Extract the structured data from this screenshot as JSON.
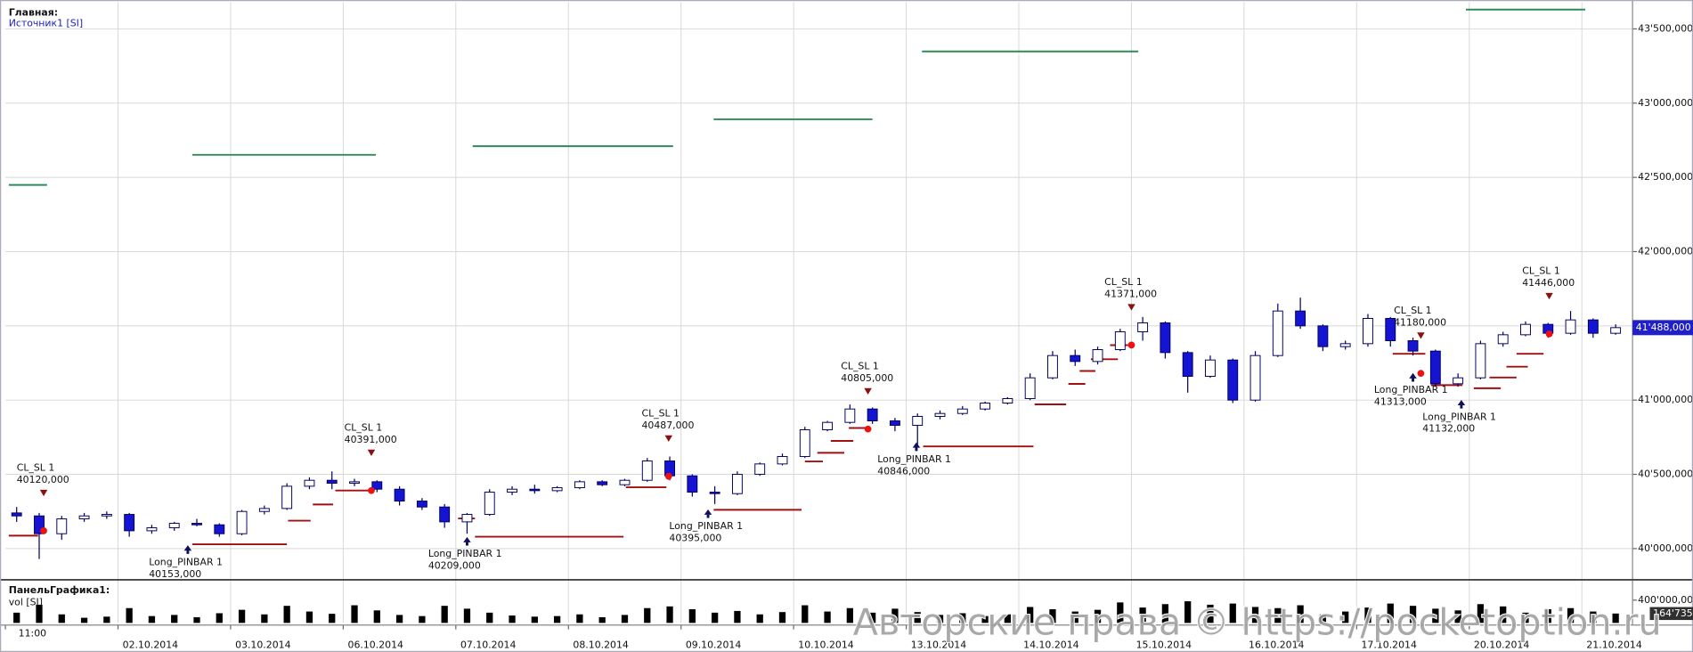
{
  "chart_data": {
    "type": "candlestick",
    "title": "Главная:",
    "subtitle": "Источник1 [SI]",
    "xlim": [
      0,
      14.45
    ],
    "xticks": [
      {
        "value": 0,
        "label": "11:00"
      },
      {
        "value": 1,
        "label": "02.10.2014"
      },
      {
        "value": 2,
        "label": "03.10.2014"
      },
      {
        "value": 3,
        "label": "06.10.2014"
      },
      {
        "value": 4,
        "label": "07.10.2014"
      },
      {
        "value": 5,
        "label": "08.10.2014"
      },
      {
        "value": 6,
        "label": "09.10.2014"
      },
      {
        "value": 7,
        "label": "10.10.2014"
      },
      {
        "value": 8,
        "label": "13.10.2014"
      },
      {
        "value": 9,
        "label": "14.10.2014"
      },
      {
        "value": 10,
        "label": "15.10.2014"
      },
      {
        "value": 11,
        "label": "16.10.2014"
      },
      {
        "value": 12,
        "label": "17.10.2014"
      },
      {
        "value": 13,
        "label": "20.10.2014"
      },
      {
        "value": 14,
        "label": "21.10.2014"
      }
    ],
    "ylim": [
      39797,
      43680
    ],
    "yticks": [
      {
        "value": 40000,
        "label": "40'000,000"
      },
      {
        "value": 40500,
        "label": "40'500,000"
      },
      {
        "value": 41000,
        "label": "41'000,000"
      },
      {
        "value": 41500,
        "label": "41'500,000"
      },
      {
        "value": 42000,
        "label": "42'000,000"
      },
      {
        "value": 42500,
        "label": "42'500,000"
      },
      {
        "value": 43000,
        "label": "43'000,000"
      },
      {
        "value": 43500,
        "label": "43'500,000"
      }
    ],
    "grid": true,
    "up_color": "#ffffff",
    "down_color": "#1414d2",
    "x": [
      0.1,
      0.3,
      0.5,
      0.7,
      0.9,
      1.1,
      1.3,
      1.5,
      1.7,
      1.9,
      2.1,
      2.3,
      2.5,
      2.7,
      2.9,
      3.1,
      3.3,
      3.5,
      3.7,
      3.9,
      4.1,
      4.3,
      4.5,
      4.7,
      4.9,
      5.1,
      5.3,
      5.5,
      5.7,
      5.9,
      6.1,
      6.3,
      6.5,
      6.7,
      6.9,
      7.1,
      7.3,
      7.5,
      7.7,
      7.9,
      8.1,
      8.3,
      8.5,
      8.7,
      8.9,
      9.1,
      9.3,
      9.5,
      9.7,
      9.9,
      10.1,
      10.3,
      10.5,
      10.7,
      10.9,
      11.1,
      11.3,
      11.5,
      11.7,
      11.9,
      12.1,
      12.3,
      12.5,
      12.7,
      12.9,
      13.1,
      13.3,
      13.5,
      13.7,
      13.9,
      14.1,
      14.3
    ],
    "open": [
      40240,
      40220,
      40100,
      40200,
      40220,
      40230,
      40120,
      40140,
      40170,
      40160,
      40100,
      40250,
      40270,
      40420,
      40460,
      40440,
      40450,
      40400,
      40320,
      40280,
      40180,
      40230,
      40380,
      40400,
      40390,
      40410,
      40450,
      40430,
      40460,
      40590,
      40490,
      40380,
      40370,
      40500,
      40570,
      40620,
      40800,
      40850,
      40940,
      40860,
      40830,
      40890,
      40910,
      40940,
      40980,
      41010,
      41150,
      41300,
      41260,
      41340,
      41460,
      41520,
      41320,
      41160,
      41270,
      41000,
      41300,
      41600,
      41500,
      41360,
      41380,
      41550,
      41400,
      41330,
      41110,
      41150,
      41380,
      41440,
      41510,
      41450,
      41540,
      41450
    ],
    "high": [
      40280,
      40240,
      40220,
      40240,
      40250,
      40240,
      40160,
      40180,
      40200,
      40170,
      40260,
      40290,
      40440,
      40480,
      40520,
      40470,
      40460,
      40420,
      40340,
      40300,
      40240,
      40400,
      40420,
      40430,
      40420,
      40460,
      40460,
      40470,
      40610,
      40620,
      40500,
      40420,
      40520,
      40580,
      40640,
      40820,
      40860,
      40970,
      40950,
      40880,
      40910,
      40930,
      40960,
      40990,
      41020,
      41180,
      41330,
      41340,
      41360,
      41480,
      41560,
      41530,
      41330,
      41300,
      41280,
      41330,
      41650,
      41690,
      41510,
      41400,
      41580,
      41560,
      41420,
      41340,
      41180,
      41400,
      41460,
      41530,
      41520,
      41600,
      41550,
      41510
    ],
    "low": [
      40180,
      39930,
      40060,
      40180,
      40200,
      40080,
      40100,
      40120,
      40150,
      40080,
      40090,
      40230,
      40260,
      40400,
      40400,
      40420,
      40380,
      40290,
      40260,
      40140,
      40100,
      40220,
      40360,
      40370,
      40380,
      40400,
      40420,
      40420,
      40450,
      40460,
      40350,
      40300,
      40360,
      40490,
      40560,
      40610,
      40790,
      40840,
      40840,
      40790,
      40680,
      40870,
      40900,
      40930,
      40970,
      41000,
      41140,
      41230,
      41240,
      41330,
      41400,
      41280,
      41050,
      41150,
      40980,
      40990,
      41290,
      41480,
      41330,
      41340,
      41360,
      41360,
      41300,
      41090,
      41090,
      41140,
      41360,
      41430,
      41420,
      41440,
      41420,
      41440
    ],
    "close": [
      40220,
      40100,
      40200,
      40220,
      40230,
      40120,
      40140,
      40170,
      40160,
      40100,
      40250,
      40270,
      40420,
      40460,
      40440,
      40450,
      40400,
      40320,
      40280,
      40180,
      40230,
      40380,
      40400,
      40390,
      40410,
      40450,
      40430,
      40460,
      40590,
      40490,
      40380,
      40370,
      40500,
      40570,
      40620,
      40800,
      40850,
      40940,
      40860,
      40830,
      40890,
      40910,
      40940,
      40980,
      41010,
      41150,
      41300,
      41260,
      41340,
      41460,
      41520,
      41320,
      41160,
      41270,
      41000,
      41300,
      41600,
      41500,
      41360,
      41380,
      41550,
      41400,
      41330,
      41110,
      41150,
      41380,
      41440,
      41510,
      41450,
      41540,
      41450,
      41488
    ],
    "current_price": {
      "value": 41488,
      "label": "41'488,000"
    },
    "target_color": "#2e8b57",
    "targets": [
      {
        "x": [
          0.03,
          0.37
        ],
        "value": 42449
      },
      {
        "x": [
          1.66,
          3.29
        ],
        "value": 42652
      },
      {
        "x": [
          4.15,
          5.93
        ],
        "value": 42710
      },
      {
        "x": [
          6.29,
          7.7
        ],
        "value": 42891
      },
      {
        "x": [
          8.14,
          10.06
        ],
        "value": 43348
      },
      {
        "x": [
          12.97,
          14.03
        ],
        "value": 43630
      }
    ],
    "stop_color": "#a01010",
    "stops": [
      {
        "x": [
          0.03,
          0.29
        ],
        "value": 40087
      },
      {
        "x": [
          1.66,
          2.5
        ],
        "value": 40029
      },
      {
        "x": [
          2.51,
          2.71
        ],
        "value": 40188
      },
      {
        "x": [
          2.73,
          2.91
        ],
        "value": 40297
      },
      {
        "x": [
          2.93,
          3.26
        ],
        "value": 40391
      },
      {
        "x": [
          4.02,
          4.17
        ],
        "value": 40203
      },
      {
        "x": [
          4.17,
          5.49
        ],
        "value": 40080
      },
      {
        "x": [
          5.51,
          5.87
        ],
        "value": 40413
      },
      {
        "x": [
          6.29,
          7.07
        ],
        "value": 40261
      },
      {
        "x": [
          7.1,
          7.26
        ],
        "value": 40587
      },
      {
        "x": [
          7.21,
          7.45
        ],
        "value": 40645
      },
      {
        "x": [
          7.33,
          7.53
        ],
        "value": 40725
      },
      {
        "x": [
          7.49,
          7.66
        ],
        "value": 40812
      },
      {
        "x": [
          8.15,
          9.13
        ],
        "value": 40688
      },
      {
        "x": [
          9.14,
          9.42
        ],
        "value": 40971
      },
      {
        "x": [
          9.44,
          9.59
        ],
        "value": 41109
      },
      {
        "x": [
          9.54,
          9.68
        ],
        "value": 41196
      },
      {
        "x": [
          9.64,
          9.88
        ],
        "value": 41275
      },
      {
        "x": [
          9.81,
          9.97
        ],
        "value": 41370
      },
      {
        "x": [
          12.32,
          12.61
        ],
        "value": 41312
      },
      {
        "x": [
          12.66,
          12.94
        ],
        "value": 41101
      },
      {
        "x": [
          13.04,
          13.28
        ],
        "value": 41080
      },
      {
        "x": [
          13.18,
          13.42
        ],
        "value": 41152
      },
      {
        "x": [
          13.33,
          13.52
        ],
        "value": 41225
      },
      {
        "x": [
          13.42,
          13.66
        ],
        "value": 41312
      }
    ],
    "exit_signals": [
      {
        "name": "CL_SL 1",
        "x": 0.34,
        "price": {
          "value": 40120,
          "label": "40120,000"
        }
      },
      {
        "name": "CL_SL 1",
        "x": 3.25,
        "price": {
          "value": 40391,
          "label": "40391,000"
        }
      },
      {
        "name": "CL_SL 1",
        "x": 5.89,
        "price": {
          "value": 40487,
          "label": "40487,000"
        }
      },
      {
        "name": "CL_SL 1",
        "x": 7.66,
        "price": {
          "value": 40805,
          "label": "40805,000"
        }
      },
      {
        "name": "CL_SL 1",
        "x": 10.0,
        "price": {
          "value": 41371,
          "label": "41371,000"
        }
      },
      {
        "name": "CL_SL 1",
        "x": 12.57,
        "price": {
          "value": 41180,
          "label": "41180,000"
        }
      },
      {
        "name": "CL_SL 1",
        "x": 13.71,
        "price": {
          "value": 41446,
          "label": "41446,000"
        }
      }
    ],
    "entry_signals": [
      {
        "name": "Long_PINBAR 1",
        "x": 1.62,
        "price": {
          "value": 40153,
          "label": "40153,000"
        }
      },
      {
        "name": "Long_PINBAR 1",
        "x": 4.1,
        "price": {
          "value": 40209,
          "label": "40209,000"
        }
      },
      {
        "name": "Long_PINBAR 1",
        "x": 6.24,
        "price": {
          "value": 40395,
          "label": "40395,000"
        }
      },
      {
        "name": "Long_PINBAR 1",
        "x": 8.09,
        "price": {
          "value": 40846,
          "label": "40846,000"
        }
      },
      {
        "name": "Long_PINBAR 1",
        "x": 12.5,
        "price": {
          "value": 41313,
          "label": "41313,000"
        }
      },
      {
        "name": "Long_PINBAR 1",
        "x": 12.93,
        "price": {
          "value": 41132,
          "label": "41132,000"
        }
      }
    ],
    "volume_panel": {
      "title": "ПанельГрафика1:",
      "subtitle": "vol [SI]",
      "ylim": [
        0,
        720000
      ],
      "yticks": [
        {
          "value": 400000,
          "label": "400'000,000"
        }
      ],
      "values": [
        180000,
        320000,
        150000,
        90000,
        110000,
        260000,
        120000,
        140000,
        100000,
        170000,
        230000,
        150000,
        300000,
        200000,
        160000,
        310000,
        220000,
        140000,
        120000,
        300000,
        250000,
        180000,
        130000,
        110000,
        120000,
        150000,
        100000,
        140000,
        260000,
        290000,
        240000,
        180000,
        210000,
        150000,
        190000,
        310000,
        200000,
        260000,
        180000,
        250000,
        190000,
        140000,
        170000,
        120000,
        150000,
        280000,
        240000,
        200000,
        230000,
        360000,
        270000,
        330000,
        380000,
        320000,
        340000,
        280000,
        260000,
        310000,
        150000,
        200000,
        270000,
        340000,
        300000,
        250000,
        220000,
        330000,
        290000,
        180000,
        240000,
        260000,
        200000,
        164735
      ],
      "current": {
        "value": 164735,
        "label": "164'735"
      }
    },
    "watermark": "Авторские права © https://pocketoption.ru"
  }
}
